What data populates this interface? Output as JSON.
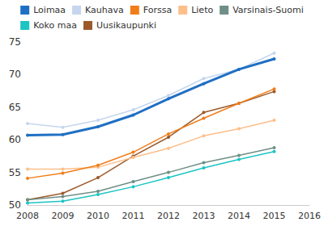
{
  "chart_data": {
    "type": "line",
    "x": [
      2008,
      2009,
      2010,
      2011,
      2012,
      2013,
      2014,
      2015
    ],
    "xlim": [
      2008,
      2016
    ],
    "xticks": [
      2008,
      2009,
      2010,
      2011,
      2012,
      2013,
      2014,
      2015,
      2016
    ],
    "ylim": [
      50,
      75
    ],
    "yticks": [
      50,
      55,
      60,
      65,
      70,
      75
    ],
    "grid": false,
    "legend": "top",
    "marker": "circle",
    "series": [
      {
        "name": "Loimaa",
        "color": "#1f6fc4",
        "values": [
          60.7,
          60.8,
          62.0,
          63.8,
          66.3,
          68.6,
          70.8,
          72.4
        ]
      },
      {
        "name": "Kauhava",
        "color": "#c5d6ee",
        "values": [
          62.5,
          61.9,
          63.0,
          64.6,
          66.8,
          69.4,
          70.8,
          73.3
        ]
      },
      {
        "name": "Forssa",
        "color": "#f07d1a",
        "values": [
          54.1,
          54.9,
          56.1,
          58.1,
          60.9,
          63.3,
          65.6,
          67.8
        ]
      },
      {
        "name": "Lieto",
        "color": "#fdbf8a",
        "values": [
          55.5,
          55.5,
          55.8,
          57.3,
          58.7,
          60.6,
          61.7,
          63.0
        ]
      },
      {
        "name": "Varsinais-Suomi",
        "color": "#6f8f86",
        "values": [
          50.8,
          51.3,
          52.1,
          53.6,
          55.0,
          56.5,
          57.6,
          58.8
        ]
      },
      {
        "name": "Koko maa",
        "color": "#1cc4c4",
        "values": [
          50.3,
          50.6,
          51.6,
          52.8,
          54.2,
          55.7,
          57.0,
          58.2
        ]
      },
      {
        "name": "Uusikaupunki",
        "color": "#9c5a2a",
        "values": [
          50.8,
          51.8,
          54.2,
          57.5,
          60.4,
          64.2,
          65.6,
          67.4
        ]
      }
    ]
  }
}
